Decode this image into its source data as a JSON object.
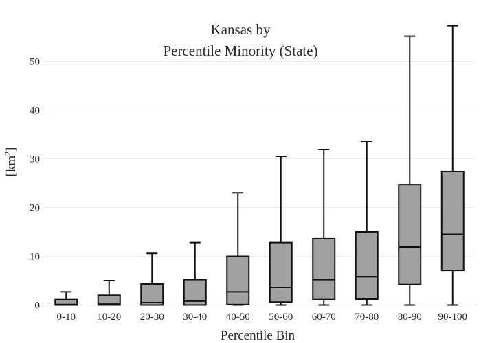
{
  "chart_data": {
    "type": "box",
    "title_lines": [
      "Kansas  by",
      "Percentile Minority (State)"
    ],
    "xlabel": "Percentile Bin",
    "ylabel": "[km",
    "ylabel_sup": "2",
    "ylabel_close": "]",
    "ylim": [
      0,
      57.5
    ],
    "yticks": [
      0,
      10,
      20,
      30,
      40,
      50
    ],
    "grid": true,
    "box_fill": "#a0a0a0",
    "line_color": "#111111",
    "categories": [
      "0-10",
      "10-20",
      "20-30",
      "30-40",
      "40-50",
      "50-60",
      "60-70",
      "70-80",
      "80-90",
      "90-100"
    ],
    "boxes": [
      {
        "min": 0,
        "q1": 0,
        "median": 0.1,
        "q3": 1.1,
        "max": 2.7
      },
      {
        "min": 0,
        "q1": 0,
        "median": 0.2,
        "q3": 2.0,
        "max": 5.0
      },
      {
        "min": 0,
        "q1": 0,
        "median": 0.5,
        "q3": 4.3,
        "max": 10.6
      },
      {
        "min": 0,
        "q1": 0,
        "median": 0.8,
        "q3": 5.2,
        "max": 12.8
      },
      {
        "min": 0,
        "q1": 0.1,
        "median": 2.7,
        "q3": 10.0,
        "max": 23.0
      },
      {
        "min": 0,
        "q1": 0.6,
        "median": 3.6,
        "q3": 12.8,
        "max": 30.5
      },
      {
        "min": 0,
        "q1": 1.1,
        "median": 5.2,
        "q3": 13.6,
        "max": 31.9
      },
      {
        "min": 0,
        "q1": 1.2,
        "median": 5.8,
        "q3": 15.0,
        "max": 33.6
      },
      {
        "min": 0,
        "q1": 4.2,
        "median": 11.9,
        "q3": 24.7,
        "max": 55.2
      },
      {
        "min": 0,
        "q1": 7.1,
        "median": 14.5,
        "q3": 27.4,
        "max": 57.3
      }
    ]
  }
}
